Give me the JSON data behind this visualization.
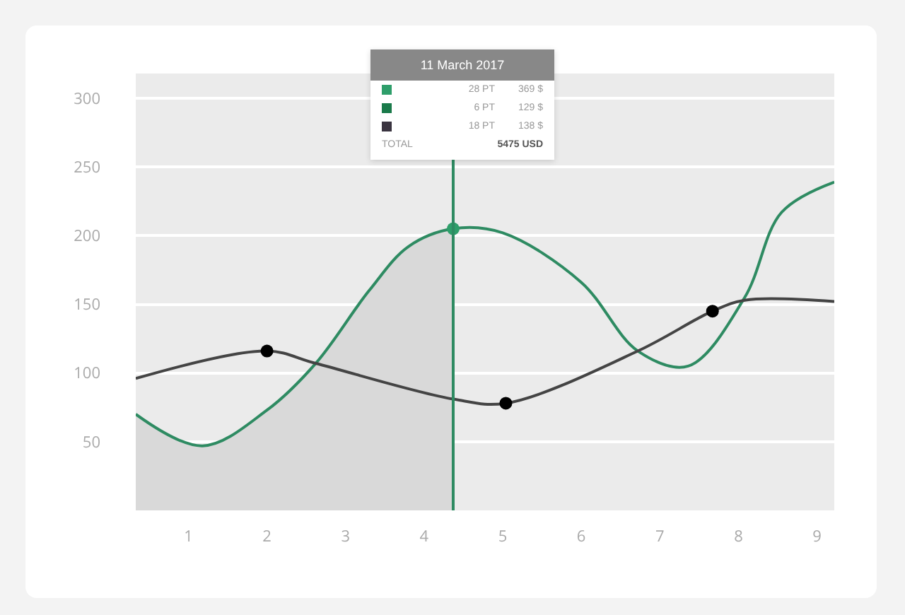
{
  "chart_data": {
    "type": "line",
    "xlim": [
      0.33,
      9.22
    ],
    "xticks": [
      1,
      2,
      3,
      4,
      5,
      6,
      7,
      8,
      9
    ],
    "ylim": [
      0,
      318
    ],
    "yticks": [
      50,
      100,
      150,
      200,
      250,
      300
    ],
    "grid": "y",
    "marker": "none",
    "line_style": "solid",
    "series": [
      {
        "type": "area",
        "color": "#d9d9d9",
        "x": [
          0.33,
          1.18,
          2,
          2.62,
          3.3,
          3.8,
          4.37
        ],
        "values": [
          70,
          47,
          73,
          107,
          160,
          192,
          205
        ]
      },
      {
        "color": "#2e8b62",
        "x": [
          0.33,
          1.18,
          2,
          2.62,
          3.3,
          3.8,
          4.37,
          5,
          6,
          6.72,
          7.36,
          8.08,
          8.55,
          9.22
        ],
        "values": [
          70,
          47,
          73,
          107,
          160,
          192,
          205,
          202,
          166,
          116,
          105,
          155,
          217,
          239
        ]
      },
      {
        "color": "#444444",
        "x": [
          0.33,
          2,
          2.62,
          4.37,
          5.04,
          6.72,
          7.67,
          8.08,
          9.22
        ],
        "values": [
          96,
          116,
          107,
          81,
          78,
          116,
          145,
          153,
          152
        ]
      },
      {
        "type": "scatter",
        "color": "#000000",
        "marker": "circle",
        "x": [
          2,
          5.04,
          7.67
        ],
        "values": [
          116,
          78,
          145
        ]
      },
      {
        "type": "scatter",
        "color": "#2e9e6a",
        "marker": "circle",
        "x": [
          4.37
        ],
        "values": [
          205
        ]
      }
    ],
    "ref_lines": [
      {
        "axis": "x",
        "value": 4.37,
        "color": "#2e8b62",
        "line_style": "solid"
      }
    ],
    "annotations": [
      "11 March 2017",
      "28 PT",
      "369 $",
      "6 PT",
      "129 $",
      "18 PT",
      "138 $",
      "TOTAL",
      "5475 USD"
    ]
  }
}
